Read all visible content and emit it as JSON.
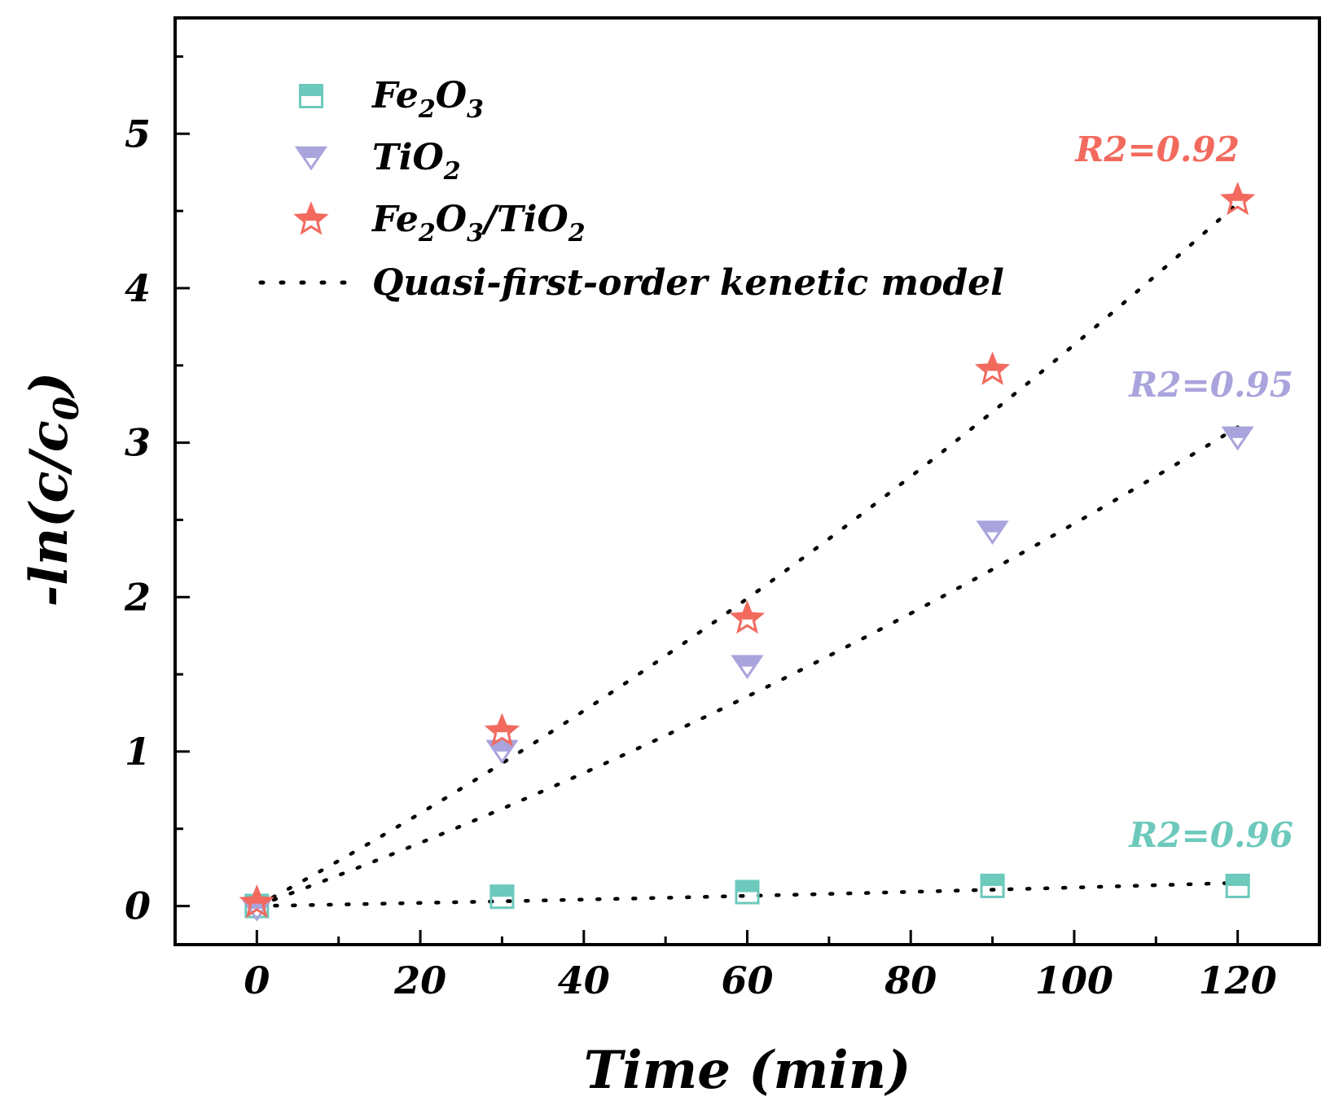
{
  "chart_data": {
    "type": "scatter",
    "title": "",
    "xlabel": "Time (min)",
    "ylabel": "-ln(c/c0)",
    "ylabel_parts": {
      "main": "-ln(c/c",
      "sub": "0",
      "close": ")"
    },
    "xlim": [
      -10,
      130
    ],
    "ylim": [
      -0.25,
      5.75
    ],
    "xticks": [
      0,
      20,
      40,
      60,
      80,
      100,
      120
    ],
    "yticks": [
      0,
      1,
      2,
      3,
      4,
      5
    ],
    "grid": false,
    "legend_position": "top-left",
    "x": [
      0,
      30,
      60,
      90,
      120
    ],
    "series": [
      {
        "name": "Fe2O3",
        "label_parts": [
          [
            "Fe",
            ""
          ],
          [
            "2",
            "sub"
          ],
          [
            "O",
            ""
          ],
          [
            "3",
            "sub"
          ]
        ],
        "marker": "square",
        "color": "#6cc9bc",
        "values": [
          0.0,
          0.06,
          0.09,
          0.13,
          0.13
        ],
        "fit_end": 0.15,
        "r2_label": "R2=0.96"
      },
      {
        "name": "TiO2",
        "label_parts": [
          [
            "TiO",
            ""
          ],
          [
            "2",
            "sub"
          ]
        ],
        "marker": "triangle-down",
        "color": "#a9a4dc",
        "values": [
          -0.02,
          1.0,
          1.55,
          2.42,
          3.03
        ],
        "fit_end": 3.1,
        "r2_label": "R2=0.95"
      },
      {
        "name": "Fe2O3/TiO2",
        "label_parts": [
          [
            "Fe",
            ""
          ],
          [
            "2",
            "sub"
          ],
          [
            "O",
            ""
          ],
          [
            "3",
            "sub"
          ],
          [
            "/TiO",
            ""
          ],
          [
            "2",
            "sub"
          ]
        ],
        "marker": "star",
        "color": "#f26a5e",
        "values": [
          0.02,
          1.13,
          1.86,
          3.47,
          4.57
        ],
        "fit_end": 4.55,
        "r2_label": "R2=0.92"
      }
    ],
    "fit_legend": "Quasi-first-order kenetic model"
  }
}
